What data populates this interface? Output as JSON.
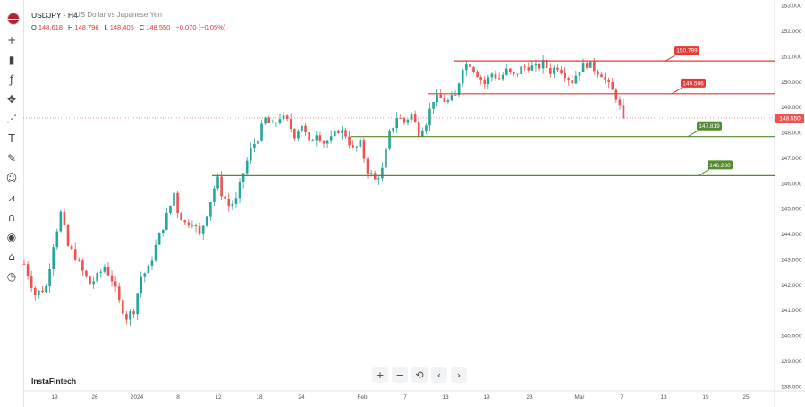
{
  "header": {
    "symbol": "USDJPY · H4",
    "description": "US Dollar vs Japanese Yen",
    "ohlc": [
      {
        "key": "O",
        "value": "148.618"
      },
      {
        "key": "H",
        "value": "148.796"
      },
      {
        "key": "L",
        "value": "148.405"
      },
      {
        "key": "C",
        "value": "148.550"
      },
      {
        "key": "",
        "value": "−0.070 (−0.05%)"
      }
    ]
  },
  "brand": "InstaFintech",
  "toolbar_icons": [
    "flag-icon",
    "crosshair-icon",
    "candles-icon",
    "fx-icon",
    "move-icon",
    "pattern-icon",
    "text-icon",
    "brush-icon",
    "emoji-icon",
    "measure-icon",
    "magnet-icon",
    "eye-lock-icon",
    "trash-lock-icon",
    "clock-icon"
  ],
  "nav_buttons": [
    {
      "name": "zoom-in-button",
      "label": "+"
    },
    {
      "name": "zoom-out-button",
      "label": "−"
    },
    {
      "name": "reset-button",
      "label": "⟲"
    },
    {
      "name": "scroll-left-button",
      "label": "‹"
    },
    {
      "name": "scroll-right-button",
      "label": "›"
    }
  ],
  "colors": {
    "up": "#26a69a",
    "down": "#ef5350",
    "resistance": "#e53935",
    "support": "#558b2f"
  },
  "chart_data": {
    "type": "candlestick",
    "ylim": [
      137.8,
      153.2
    ],
    "y_ticks": [
      "153.000",
      "152.000",
      "151.000",
      "150.000",
      "149.000",
      "148.000",
      "147.000",
      "146.000",
      "145.000",
      "144.000",
      "143.000",
      "142.000",
      "141.000",
      "140.000",
      "139.000",
      "138.000"
    ],
    "x_ticks": [
      "19",
      "26",
      "2024",
      "8",
      "12",
      "18",
      "24",
      "Feb",
      "7",
      "13",
      "19",
      "23",
      "Mar",
      "7",
      "13",
      "19",
      "25"
    ],
    "last_price": "148.550",
    "levels": [
      {
        "value": 150.799,
        "label": "150.799",
        "kind": "resistance"
      },
      {
        "value": 149.506,
        "label": "149.506",
        "kind": "resistance"
      },
      {
        "value": 147.819,
        "label": "147.819",
        "kind": "support"
      },
      {
        "value": 146.28,
        "label": "146.280",
        "kind": "support"
      }
    ],
    "path": [
      [
        0,
        142.8
      ],
      [
        3,
        141.6
      ],
      [
        6,
        141.9
      ],
      [
        8,
        143.6
      ],
      [
        10,
        144.8
      ],
      [
        12,
        143.5
      ],
      [
        14,
        143.1
      ],
      [
        16,
        142.5
      ],
      [
        18,
        142.0
      ],
      [
        20,
        142.3
      ],
      [
        22,
        142.7
      ],
      [
        24,
        142.2
      ],
      [
        26,
        141.3
      ],
      [
        28,
        140.7
      ],
      [
        30,
        141.0
      ],
      [
        32,
        142.3
      ],
      [
        34,
        142.6
      ],
      [
        36,
        143.5
      ],
      [
        38,
        144.3
      ],
      [
        40,
        145.1
      ],
      [
        41,
        145.6
      ],
      [
        42,
        144.9
      ],
      [
        44,
        144.4
      ],
      [
        46,
        144.5
      ],
      [
        48,
        143.9
      ],
      [
        50,
        144.8
      ],
      [
        52,
        145.8
      ],
      [
        53,
        146.1
      ],
      [
        54,
        145.6
      ],
      [
        56,
        145.1
      ],
      [
        58,
        145.3
      ],
      [
        60,
        146.4
      ],
      [
        62,
        147.3
      ],
      [
        64,
        147.8
      ],
      [
        66,
        148.5
      ],
      [
        68,
        148.2
      ],
      [
        70,
        148.6
      ],
      [
        72,
        148.4
      ],
      [
        74,
        147.9
      ],
      [
        76,
        148.3
      ],
      [
        78,
        147.5
      ],
      [
        80,
        148.0
      ],
      [
        82,
        147.6
      ],
      [
        84,
        147.7
      ],
      [
        86,
        148.1
      ],
      [
        88,
        147.9
      ],
      [
        90,
        147.3
      ],
      [
        92,
        147.5
      ],
      [
        94,
        146.5
      ],
      [
        96,
        146.1
      ],
      [
        98,
        146.5
      ],
      [
        100,
        147.9
      ],
      [
        102,
        148.6
      ],
      [
        104,
        148.4
      ],
      [
        106,
        148.7
      ],
      [
        108,
        148.0
      ],
      [
        110,
        148.4
      ],
      [
        112,
        149.3
      ],
      [
        114,
        149.3
      ],
      [
        116,
        149.2
      ],
      [
        118,
        149.4
      ],
      [
        120,
        150.6
      ],
      [
        122,
        150.7
      ],
      [
        124,
        150.3
      ],
      [
        126,
        149.9
      ],
      [
        128,
        150.3
      ],
      [
        130,
        150.1
      ],
      [
        132,
        150.4
      ],
      [
        134,
        150.2
      ],
      [
        136,
        150.5
      ],
      [
        138,
        150.6
      ],
      [
        140,
        150.5
      ],
      [
        142,
        150.7
      ],
      [
        144,
        150.4
      ],
      [
        146,
        150.6
      ],
      [
        148,
        150.3
      ],
      [
        150,
        150.0
      ],
      [
        152,
        150.5
      ],
      [
        154,
        150.7
      ],
      [
        156,
        150.5
      ],
      [
        158,
        150.3
      ],
      [
        160,
        149.8
      ],
      [
        162,
        149.4
      ],
      [
        164,
        148.55
      ]
    ]
  }
}
